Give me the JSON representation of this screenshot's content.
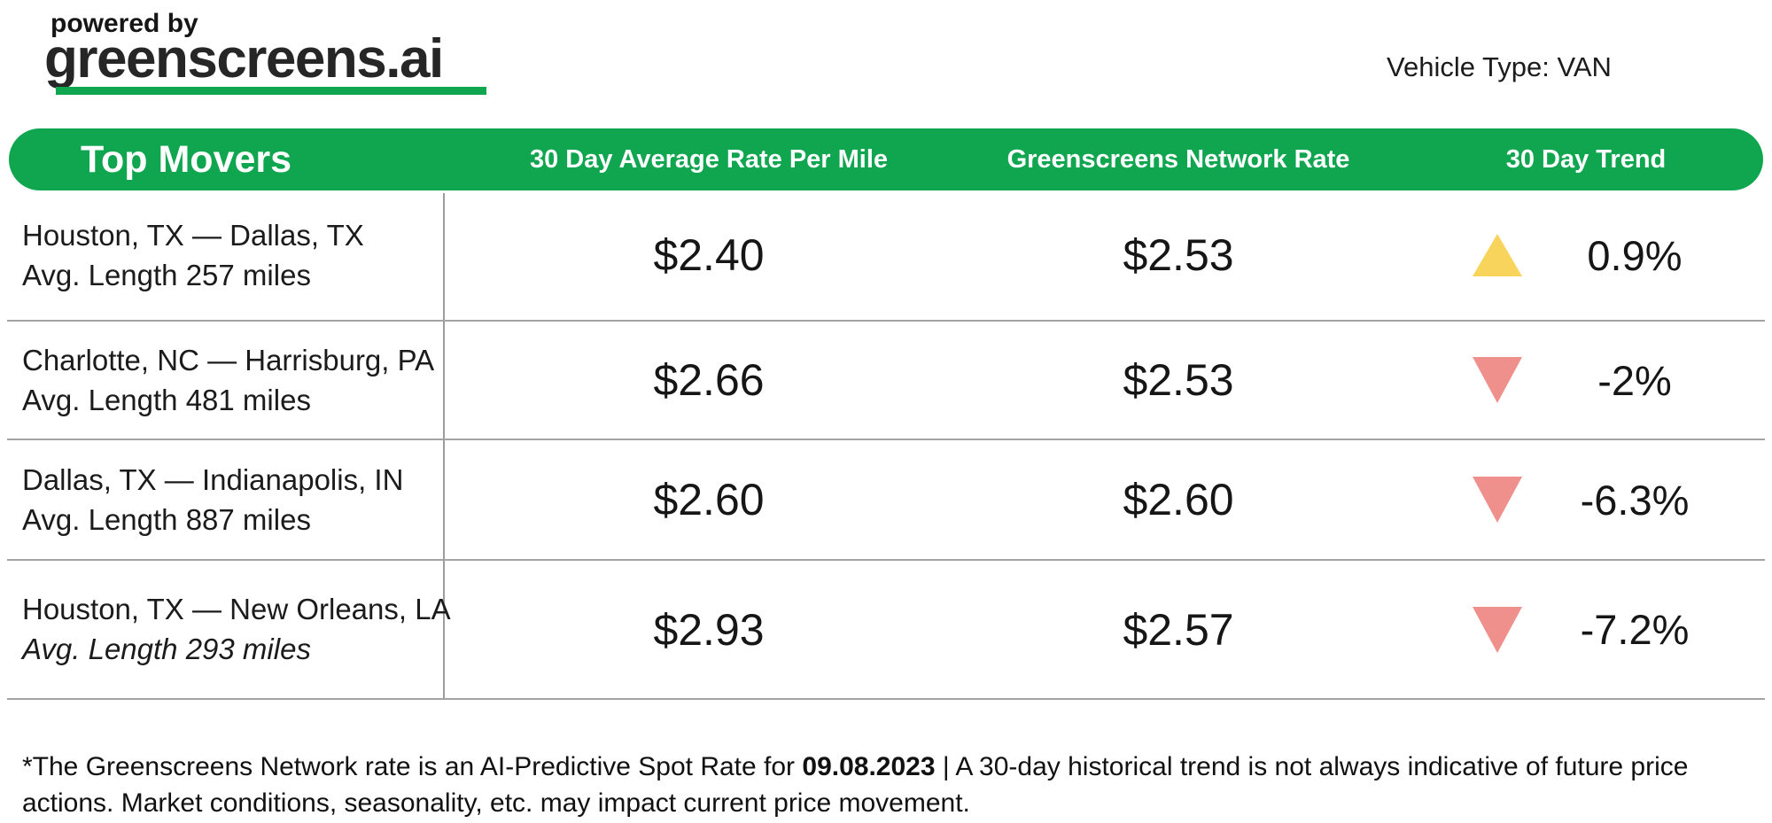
{
  "branding": {
    "powered_by": "powered by",
    "logo_text": "greenscreens.ai"
  },
  "meta": {
    "vehicle_type": "Vehicle Type: VAN"
  },
  "table": {
    "title": "Top Movers",
    "columns": {
      "avg_rate": "30 Day Average Rate Per Mile",
      "network_rate": "Greenscreens Network Rate",
      "trend": "30 Day Trend"
    },
    "rows": [
      {
        "route": "Houston, TX — Dallas, TX",
        "avg_length": "Avg. Length 257 miles",
        "avg_rate": "$2.40",
        "network_rate": "$2.53",
        "trend_value": "0.9%",
        "trend_direction": "up"
      },
      {
        "route": "Charlotte, NC — Harrisburg, PA",
        "avg_length": "Avg. Length 481 miles",
        "avg_rate": "$2.66",
        "network_rate": "$2.53",
        "trend_value": "-2%",
        "trend_direction": "down"
      },
      {
        "route": "Dallas, TX — Indianapolis, IN",
        "avg_length": "Avg. Length 887 miles",
        "avg_rate": "$2.60",
        "network_rate": "$2.60",
        "trend_value": "-6.3%",
        "trend_direction": "down"
      },
      {
        "route": "Houston, TX — New Orleans, LA",
        "avg_length": "Avg. Length 293 miles",
        "avg_rate": "$2.93",
        "network_rate": "$2.57",
        "trend_value": "-7.2%",
        "trend_direction": "down"
      }
    ]
  },
  "footer": {
    "disclaimer_prefix": "*The Greenscreens Network rate is an AI-Predictive Spot Rate for ",
    "date": "09.08.2023",
    "disclaimer_suffix": " | A 30-day historical trend is not always indicative of future price actions. Market conditions, seasonality, etc. may impact current price movement."
  },
  "colors": {
    "brand_green": "#10A54F",
    "trend_up": "#F9D45C",
    "trend_down": "#F0908D"
  },
  "chart_data": {
    "type": "table",
    "title": "Top Movers",
    "columns": [
      "Route",
      "30 Day Average Rate Per Mile",
      "Greenscreens Network Rate",
      "30 Day Trend"
    ],
    "rows": [
      [
        "Houston, TX — Dallas, TX (Avg. Length 257 miles)",
        2.4,
        2.53,
        "0.9%"
      ],
      [
        "Charlotte, NC — Harrisburg, PA (Avg. Length 481 miles)",
        2.66,
        2.53,
        "-2%"
      ],
      [
        "Dallas, TX — Indianapolis, IN (Avg. Length 887 miles)",
        2.6,
        2.6,
        "-6.3%"
      ],
      [
        "Houston, TX — New Orleans, LA (Avg. Length 293 miles)",
        2.93,
        2.57,
        "-7.2%"
      ]
    ],
    "notes": "Trend triangle up = yellow (#F9D45C), down = coral (#F0908D); rates in $/mile for vehicle type VAN, spot rate date 09.08.2023"
  }
}
